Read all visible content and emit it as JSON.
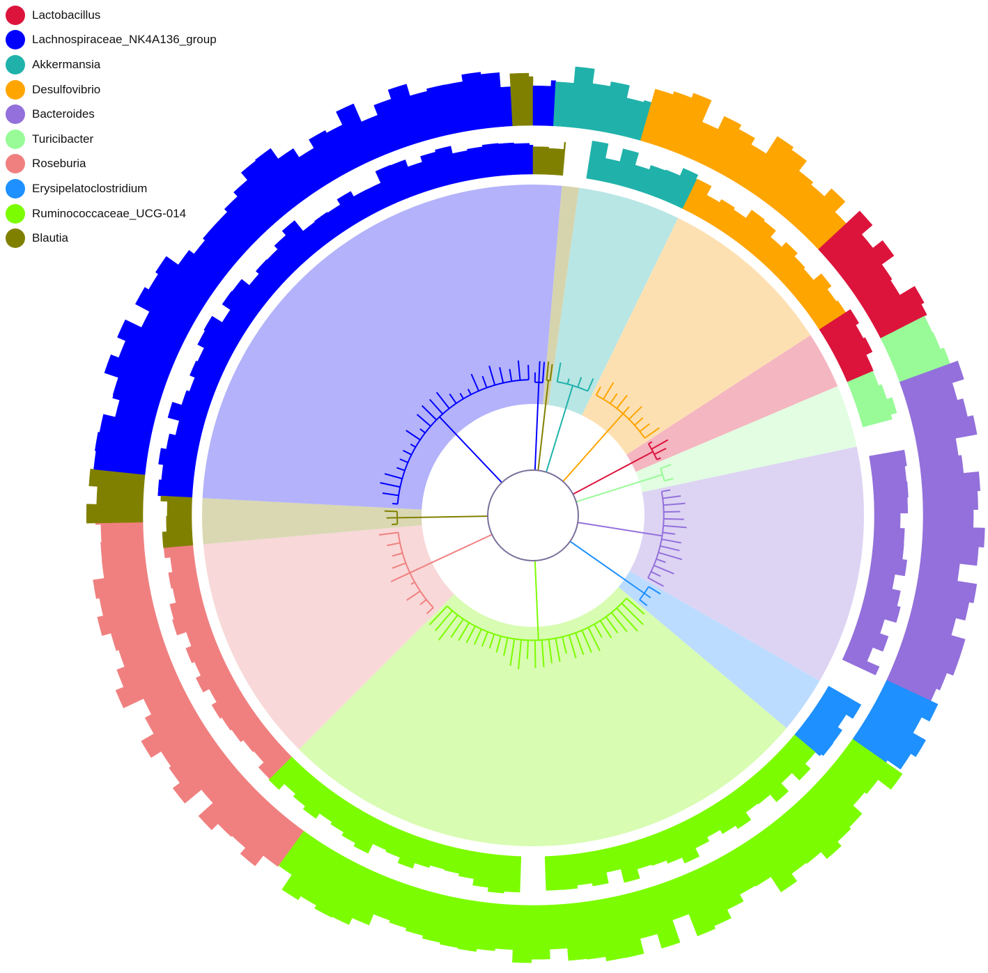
{
  "legend": [
    {
      "name": "Lactobacillus",
      "color": "#dc143c"
    },
    {
      "name": "Lachnospiraceae_NK4A136_group",
      "color": "#0000ff"
    },
    {
      "name": "Akkermansia",
      "color": "#20b2aa"
    },
    {
      "name": "Desulfovibrio",
      "color": "#ffa500"
    },
    {
      "name": "Bacteroides",
      "color": "#9370db"
    },
    {
      "name": "Turicibacter",
      "color": "#98fb98"
    },
    {
      "name": "Roseburia",
      "color": "#f08080"
    },
    {
      "name": "Erysipelatoclostridium",
      "color": "#1e90ff"
    },
    {
      "name": "Ruminococcaceae_UCG-014",
      "color": "#7cfc00"
    },
    {
      "name": "Blautia",
      "color": "#808000"
    }
  ],
  "clades": [
    {
      "genus": "Blautia",
      "start": 5,
      "end": 8,
      "tint": "#d6d4ad",
      "tips": 2
    },
    {
      "genus": "Akkermansia",
      "start": 8,
      "end": 26,
      "tint": "#b8e6e4",
      "tips": 4
    },
    {
      "genus": "Desulfovibrio",
      "start": 26,
      "end": 57,
      "tint": "#fde0b2",
      "tips": 9
    },
    {
      "genus": "Lactobacillus",
      "start": 57,
      "end": 67,
      "tint": "#f4b6c1",
      "tips": 4
    },
    {
      "genus": "Turicibacter",
      "start": 67,
      "end": 78,
      "tint": "#e2fde2",
      "tips": 2
    },
    {
      "genus": "Bacteroides",
      "start": 78,
      "end": 120,
      "tint": "#ddd4f3",
      "tips": 14
    },
    {
      "genus": "Erysipelatoclostridium",
      "start": 120,
      "end": 130,
      "tint": "#bcdcff",
      "tips": 3
    },
    {
      "genus": "Ruminococcaceae_UCG-014",
      "start": 130,
      "end": 225,
      "tint": "#d8fcb2",
      "tips": 30
    },
    {
      "genus": "Roseburia",
      "start": 225,
      "end": 265,
      "tint": "#f8d8d8",
      "tips": 9
    },
    {
      "genus": "Blautia",
      "start": 265,
      "end": 273,
      "tint": "#d9d8b3",
      "tips": 3
    },
    {
      "genus": "Lachnospiraceae_NK4A136_group",
      "start": 273,
      "end": 360,
      "tint": "#b3b2fa",
      "tips": 24
    },
    {
      "genus": "Lachnospiraceae_NK4A136_group",
      "start": 0,
      "end": 5,
      "tint": "#b3b2fa",
      "tips": 3
    }
  ],
  "rings": [
    {
      "ring": "inner",
      "genus": "Lachnospiraceae_NK4A136_group",
      "start": 273,
      "end": 360
    },
    {
      "ring": "inner",
      "genus": "Blautia",
      "start": 0,
      "end": 5
    },
    {
      "ring": "inner",
      "genus": "Akkermansia",
      "start": 9,
      "end": 26
    },
    {
      "ring": "inner",
      "genus": "Desulfovibrio",
      "start": 26,
      "end": 57
    },
    {
      "ring": "inner",
      "genus": "Lactobacillus",
      "start": 57,
      "end": 67
    },
    {
      "ring": "inner",
      "genus": "Turicibacter",
      "start": 67,
      "end": 75
    },
    {
      "ring": "inner",
      "genus": "Bacteroides",
      "start": 80,
      "end": 115
    },
    {
      "ring": "inner",
      "genus": "Erysipelatoclostridium",
      "start": 120,
      "end": 130
    },
    {
      "ring": "inner",
      "genus": "Ruminococcaceae_UCG-014",
      "start": 130,
      "end": 178
    },
    {
      "ring": "inner",
      "genus": "Ruminococcaceae_UCG-014",
      "start": 182,
      "end": 225
    },
    {
      "ring": "inner",
      "genus": "Roseburia",
      "start": 225,
      "end": 265
    },
    {
      "ring": "inner",
      "genus": "Blautia",
      "start": 265,
      "end": 273
    },
    {
      "ring": "outer",
      "genus": "Lachnospiraceae_NK4A136_group",
      "start": 286,
      "end": 357
    },
    {
      "ring": "outer",
      "genus": "Blautia",
      "start": 357,
      "end": 360
    },
    {
      "ring": "outer",
      "genus": "Lachnospiraceae_NK4A136_group",
      "start": 0,
      "end": 3
    },
    {
      "ring": "outer",
      "genus": "Akkermansia",
      "start": 3,
      "end": 16
    },
    {
      "ring": "outer",
      "genus": "Desulfovibrio",
      "start": 16,
      "end": 47
    },
    {
      "ring": "outer",
      "genus": "Lactobacillus",
      "start": 47,
      "end": 63
    },
    {
      "ring": "outer",
      "genus": "Turicibacter",
      "start": 63,
      "end": 70
    },
    {
      "ring": "outer",
      "genus": "Bacteroides",
      "start": 70,
      "end": 115
    },
    {
      "ring": "outer",
      "genus": "Erysipelatoclostridium",
      "start": 115,
      "end": 125
    },
    {
      "ring": "outer",
      "genus": "Ruminococcaceae_UCG-014",
      "start": 125,
      "end": 216
    },
    {
      "ring": "outer",
      "genus": "Roseburia",
      "start": 216,
      "end": 269
    },
    {
      "ring": "outer",
      "genus": "Blautia",
      "start": 269,
      "end": 276
    },
    {
      "ring": "outer",
      "genus": "Lachnospiraceae_NK4A136_group",
      "start": 276,
      "end": 286
    }
  ]
}
